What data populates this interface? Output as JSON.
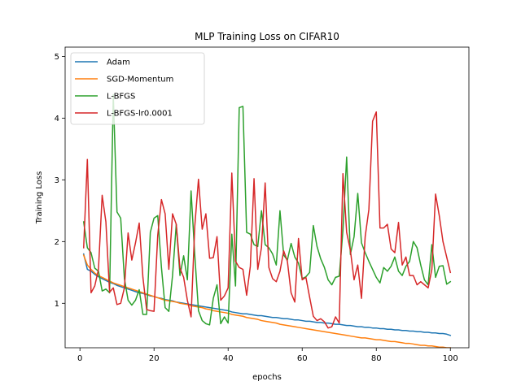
{
  "chart_data": {
    "type": "line",
    "title": "MLP Training Loss on CIFAR10",
    "xlabel": "epochs",
    "ylabel": "Training Loss",
    "xlim": [
      -4,
      105
    ],
    "ylim": [
      0.28,
      5.15
    ],
    "xticks": [
      0,
      20,
      40,
      60,
      80,
      100
    ],
    "yticks": [
      1,
      2,
      3,
      4,
      5
    ],
    "grid": false,
    "legend_position": "top-left",
    "x": [
      1,
      2,
      3,
      4,
      5,
      6,
      7,
      8,
      9,
      10,
      11,
      12,
      13,
      14,
      15,
      16,
      17,
      18,
      19,
      20,
      21,
      22,
      23,
      24,
      25,
      26,
      27,
      28,
      29,
      30,
      31,
      32,
      33,
      34,
      35,
      36,
      37,
      38,
      39,
      40,
      41,
      42,
      43,
      44,
      45,
      46,
      47,
      48,
      49,
      50,
      51,
      52,
      53,
      54,
      55,
      56,
      57,
      58,
      59,
      60,
      61,
      62,
      63,
      64,
      65,
      66,
      67,
      68,
      69,
      70,
      71,
      72,
      73,
      74,
      75,
      76,
      77,
      78,
      79,
      80,
      81,
      82,
      83,
      84,
      85,
      86,
      87,
      88,
      89,
      90,
      91,
      92,
      93,
      94,
      95,
      96,
      97,
      98,
      99,
      100
    ],
    "series": [
      {
        "name": "Adam",
        "color": "#1f77b4",
        "values": [
          1.8,
          1.55,
          1.52,
          1.47,
          1.43,
          1.4,
          1.37,
          1.34,
          1.32,
          1.29,
          1.27,
          1.25,
          1.23,
          1.21,
          1.19,
          1.17,
          1.16,
          1.14,
          1.12,
          1.11,
          1.09,
          1.08,
          1.06,
          1.05,
          1.04,
          1.02,
          1.01,
          1.0,
          0.99,
          0.98,
          0.97,
          0.96,
          0.95,
          0.94,
          0.93,
          0.92,
          0.91,
          0.9,
          0.89,
          0.88,
          0.86,
          0.85,
          0.84,
          0.83,
          0.83,
          0.82,
          0.81,
          0.8,
          0.8,
          0.79,
          0.78,
          0.77,
          0.77,
          0.76,
          0.75,
          0.75,
          0.74,
          0.73,
          0.73,
          0.72,
          0.71,
          0.71,
          0.7,
          0.69,
          0.69,
          0.68,
          0.68,
          0.67,
          0.66,
          0.66,
          0.65,
          0.64,
          0.64,
          0.63,
          0.62,
          0.62,
          0.61,
          0.61,
          0.6,
          0.6,
          0.59,
          0.59,
          0.58,
          0.58,
          0.57,
          0.57,
          0.56,
          0.56,
          0.55,
          0.55,
          0.54,
          0.54,
          0.53,
          0.53,
          0.52,
          0.52,
          0.51,
          0.51,
          0.5,
          0.48
        ]
      },
      {
        "name": "SGD-Momentum",
        "color": "#ff7f0e",
        "values": [
          1.78,
          1.62,
          1.55,
          1.49,
          1.45,
          1.42,
          1.39,
          1.36,
          1.33,
          1.31,
          1.29,
          1.27,
          1.25,
          1.23,
          1.21,
          1.19,
          1.17,
          1.15,
          1.13,
          1.11,
          1.09,
          1.07,
          1.05,
          1.04,
          1.03,
          1.02,
          1.0,
          0.99,
          0.98,
          0.96,
          0.95,
          0.94,
          0.93,
          0.91,
          0.9,
          0.88,
          0.87,
          0.86,
          0.85,
          0.84,
          0.82,
          0.81,
          0.8,
          0.79,
          0.77,
          0.76,
          0.75,
          0.74,
          0.72,
          0.71,
          0.7,
          0.69,
          0.68,
          0.66,
          0.65,
          0.64,
          0.63,
          0.62,
          0.61,
          0.6,
          0.59,
          0.58,
          0.57,
          0.56,
          0.55,
          0.54,
          0.53,
          0.52,
          0.51,
          0.5,
          0.49,
          0.48,
          0.47,
          0.46,
          0.45,
          0.44,
          0.44,
          0.43,
          0.42,
          0.41,
          0.41,
          0.4,
          0.39,
          0.38,
          0.38,
          0.37,
          0.36,
          0.35,
          0.35,
          0.34,
          0.33,
          0.32,
          0.32,
          0.31,
          0.31,
          0.3,
          0.29,
          0.29,
          0.28,
          0.28
        ]
      },
      {
        "name": "L-BFGS",
        "color": "#2ca02c",
        "values": [
          2.32,
          1.9,
          1.82,
          1.57,
          1.52,
          1.2,
          1.23,
          1.17,
          4.38,
          2.48,
          2.38,
          1.4,
          1.05,
          0.97,
          1.05,
          1.22,
          0.82,
          0.82,
          2.15,
          2.38,
          2.42,
          1.58,
          0.93,
          0.87,
          1.45,
          2.28,
          1.45,
          1.77,
          1.38,
          2.82,
          1.78,
          0.88,
          0.72,
          0.67,
          0.65,
          1.08,
          1.3,
          0.67,
          0.78,
          0.68,
          2.12,
          1.28,
          4.17,
          4.19,
          2.15,
          2.12,
          1.95,
          1.92,
          2.5,
          1.95,
          1.9,
          1.8,
          1.62,
          2.5,
          1.78,
          1.7,
          1.97,
          1.75,
          1.65,
          1.4,
          1.43,
          1.5,
          2.26,
          1.92,
          1.72,
          1.58,
          1.38,
          1.3,
          1.42,
          1.44,
          2.18,
          3.37,
          1.79,
          2.08,
          2.78,
          1.98,
          1.82,
          1.68,
          1.55,
          1.42,
          1.33,
          1.58,
          1.52,
          1.6,
          1.75,
          1.52,
          1.45,
          1.6,
          1.68,
          2.0,
          1.9,
          1.62,
          1.38,
          1.3,
          1.95,
          1.42,
          1.6,
          1.61,
          1.31,
          1.35
        ]
      },
      {
        "name": "L-BFGS-lr0.0001",
        "color": "#d62728",
        "values": [
          1.9,
          3.33,
          1.17,
          1.28,
          1.55,
          2.75,
          2.32,
          1.18,
          1.25,
          0.98,
          1.0,
          1.25,
          2.14,
          1.7,
          1.98,
          2.3,
          1.42,
          0.9,
          0.88,
          0.87,
          2.1,
          2.68,
          2.45,
          1.55,
          2.45,
          2.28,
          1.57,
          1.42,
          1.05,
          0.78,
          2.25,
          3.01,
          2.2,
          2.45,
          1.73,
          1.74,
          2.08,
          1.05,
          1.12,
          1.25,
          3.11,
          1.68,
          1.58,
          1.55,
          1.13,
          1.6,
          3.02,
          1.55,
          1.9,
          2.95,
          1.58,
          1.4,
          1.35,
          1.52,
          1.85,
          1.68,
          1.17,
          1.02,
          2.05,
          1.38,
          1.42,
          1.1,
          0.79,
          0.72,
          0.75,
          0.7,
          0.6,
          0.62,
          0.78,
          0.68,
          3.1,
          2.15,
          1.86,
          1.38,
          1.62,
          1.08,
          2.08,
          2.52,
          3.95,
          4.1,
          2.22,
          2.22,
          2.28,
          1.88,
          1.82,
          2.31,
          1.62,
          1.75,
          1.45,
          1.45,
          1.3,
          1.35,
          1.3,
          1.25,
          1.55,
          2.77,
          2.42,
          2.0,
          1.75,
          1.5
        ]
      }
    ]
  }
}
